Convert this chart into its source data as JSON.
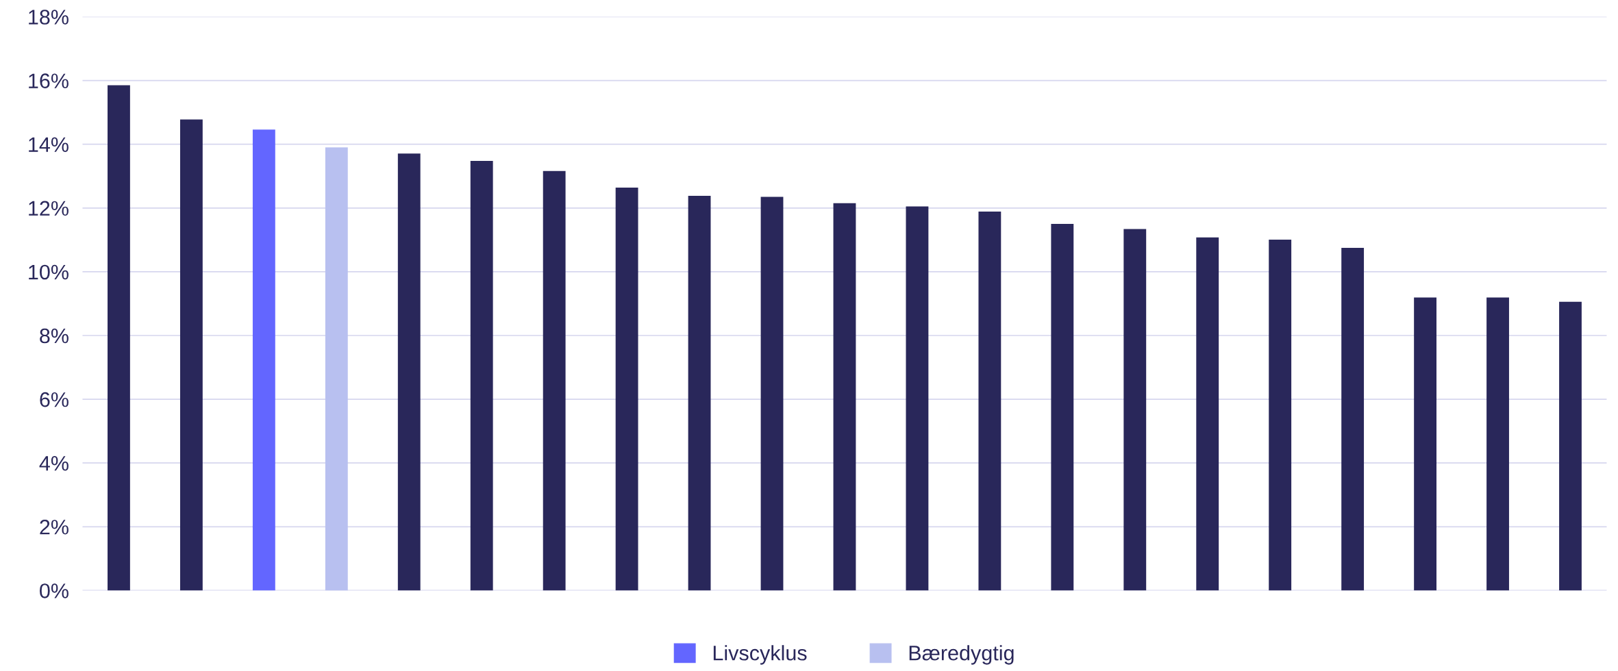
{
  "chart_data": {
    "type": "bar",
    "categories": [
      null,
      null,
      null,
      null,
      null,
      null,
      null,
      null,
      null,
      null,
      null,
      null,
      null,
      null,
      null,
      null,
      null,
      null,
      null,
      null,
      null
    ],
    "series": [
      {
        "color": "#29275a",
        "values": [
          15.85,
          14.78,
          null,
          null,
          13.71,
          13.48,
          13.16,
          12.64,
          12.38,
          12.35,
          12.15,
          12.05,
          11.89,
          11.5,
          11.34,
          11.08,
          11.01,
          10.75,
          9.19,
          9.19,
          9.06
        ]
      },
      {
        "name": "Livscyklus",
        "color": "#6366ff",
        "values": [
          null,
          null,
          14.46,
          null,
          null,
          null,
          null,
          null,
          null,
          null,
          null,
          null,
          null,
          null,
          null,
          null,
          null,
          null,
          null,
          null,
          null
        ]
      },
      {
        "name": "Bæredygtig",
        "color": "#b8c0f0",
        "values": [
          null,
          null,
          null,
          13.9,
          null,
          null,
          null,
          null,
          null,
          null,
          null,
          null,
          null,
          null,
          null,
          null,
          null,
          null,
          null,
          null,
          null
        ]
      }
    ],
    "ylim": [
      0,
      18
    ],
    "yticks": [
      {
        "value": 0,
        "label": "0%"
      },
      {
        "value": 2,
        "label": "2%"
      },
      {
        "value": 4,
        "label": "4%"
      },
      {
        "value": 6,
        "label": "6%"
      },
      {
        "value": 8,
        "label": "8%"
      },
      {
        "value": 10,
        "label": "10%"
      },
      {
        "value": 12,
        "label": "12%"
      },
      {
        "value": 14,
        "label": "14%"
      },
      {
        "value": 16,
        "label": "16%"
      },
      {
        "value": 18,
        "label": "18%"
      }
    ],
    "grid": "y",
    "legend": "bottom"
  }
}
